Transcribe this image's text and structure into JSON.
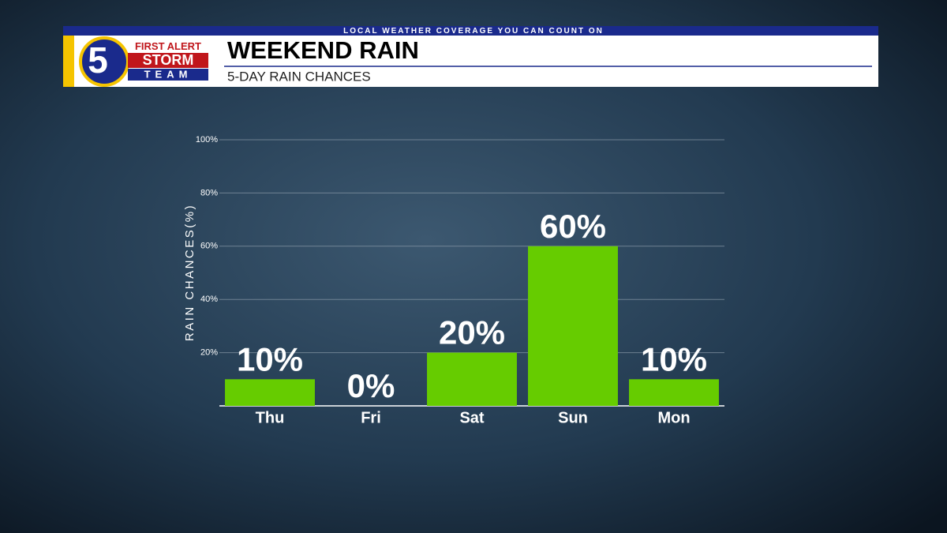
{
  "header": {
    "tagline": "LOCAL WEATHER COVERAGE YOU CAN COUNT ON",
    "logo_number": "5",
    "logo_top": "FIRST ALERT",
    "logo_middle": "STORM",
    "logo_bottom": "TEAM"
  },
  "chart_data": {
    "type": "bar",
    "title": "WEEKEND RAIN",
    "subtitle": "5-DAY RAIN CHANCES",
    "y_label": "RAIN CHANCES(%)",
    "categories": [
      "Thu",
      "Fri",
      "Sat",
      "Sun",
      "Mon"
    ],
    "values": [
      10,
      0,
      20,
      60,
      10
    ],
    "value_labels": [
      "10%",
      "0%",
      "20%",
      "60%",
      "10%"
    ],
    "color": "#66cc00",
    "ylim": [
      0,
      100
    ],
    "yticks": [
      {
        "value": 20,
        "label": "20%"
      },
      {
        "value": 40,
        "label": "40%"
      },
      {
        "value": 60,
        "label": "60%"
      },
      {
        "value": 80,
        "label": "80%"
      },
      {
        "value": 100,
        "label": "100%"
      }
    ],
    "grid": true
  }
}
